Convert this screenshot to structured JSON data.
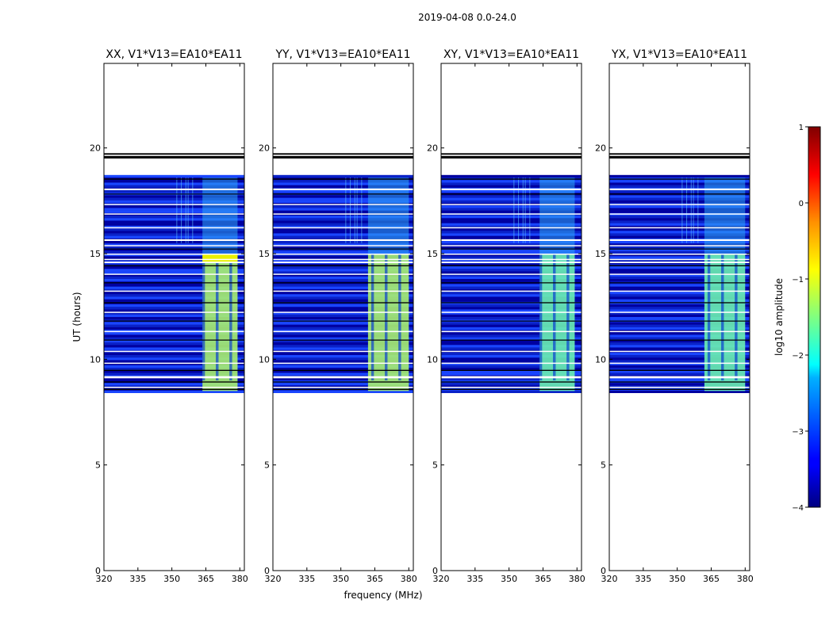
{
  "chart_data": {
    "type": "heatmap",
    "suptitle": "2019-04-08 0.0-24.0",
    "xlabel": "frequency (MHz)",
    "ylabel": "UT (hours)",
    "xlim": [
      320,
      382
    ],
    "ylim": [
      0,
      24
    ],
    "x_ticks": [
      320,
      335,
      350,
      365,
      380
    ],
    "y_ticks": [
      0,
      5,
      10,
      15,
      20
    ],
    "panels": [
      {
        "title": "XX, V1*V13=EA10*EA11",
        "pol": "XX"
      },
      {
        "title": "YY, V1*V13=EA10*EA11",
        "pol": "YY"
      },
      {
        "title": "XY, V1*V13=EA10*EA11",
        "pol": "XY"
      },
      {
        "title": "YX, V1*V13=EA10*EA11",
        "pol": "YX"
      }
    ],
    "colorbar": {
      "label": "log10 amplitude",
      "colormap": "jet",
      "range": [
        -4,
        1
      ],
      "ticks": [
        -4,
        -3,
        -2,
        -1,
        0,
        1
      ]
    },
    "data_window": {
      "ut_start": 8.4,
      "ut_end": 18.6
    },
    "bright_band_mhz": [
      362,
      380
    ],
    "bright_channels_mhz": [
      364,
      370,
      376
    ],
    "blank_rows_ut": [
      [
        19.3,
        19.45
      ],
      [
        18.0,
        18.08
      ],
      [
        17.3,
        17.35
      ],
      [
        16.85,
        16.9
      ],
      [
        16.2,
        16.25
      ],
      [
        15.6,
        15.68
      ],
      [
        15.35,
        15.4
      ],
      [
        14.95,
        15.0
      ],
      [
        14.7,
        14.75
      ],
      [
        14.55,
        14.62
      ],
      [
        14.0,
        14.05
      ],
      [
        13.2,
        13.25
      ],
      [
        12.2,
        12.25
      ],
      [
        11.3,
        11.34
      ],
      [
        10.35,
        10.4
      ],
      [
        9.8,
        9.84
      ],
      [
        9.1,
        9.2
      ],
      [
        8.65,
        8.7
      ]
    ],
    "black_rows_ut": [
      [
        19.5,
        19.62
      ],
      [
        19.68,
        19.75
      ],
      [
        18.5,
        18.55
      ],
      [
        17.8,
        17.84
      ],
      [
        15.2,
        15.24
      ],
      [
        14.4,
        14.45
      ],
      [
        13.6,
        13.64
      ],
      [
        12.65,
        12.7
      ],
      [
        11.8,
        11.83
      ],
      [
        10.9,
        10.93
      ],
      [
        9.45,
        9.5
      ],
      [
        8.9,
        8.95
      ],
      [
        8.55,
        8.6
      ]
    ]
  }
}
